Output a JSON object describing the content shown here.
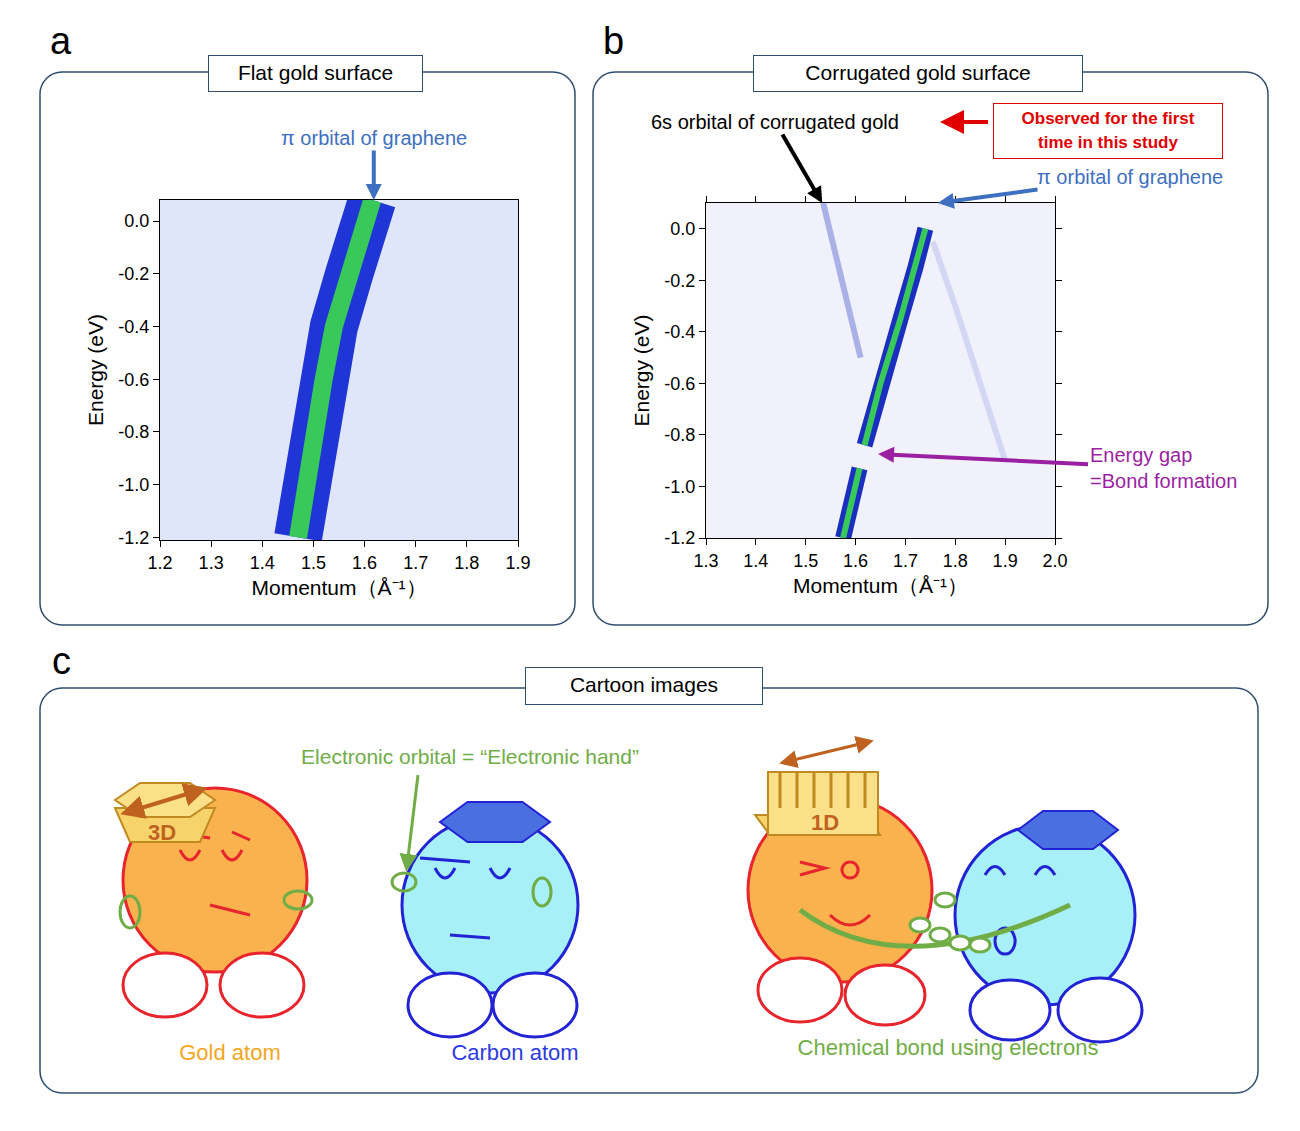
{
  "chart_data": [
    {
      "panel": "a",
      "title": "Flat gold surface",
      "type": "line",
      "x_label": "Momentum（Å⁻¹）",
      "y_label": "Energy (eV)",
      "xlim": [
        1.2,
        1.9
      ],
      "ylim": [
        -1.21,
        0.08
      ],
      "xticks": [
        1.2,
        1.3,
        1.4,
        1.5,
        1.6,
        1.7,
        1.8,
        1.9
      ],
      "yticks": [
        {
          "value": 0,
          "label": "0.0"
        },
        -0.2,
        -0.4,
        -0.6,
        -0.8,
        {
          "value": -1,
          "label": "-1.0"
        },
        -1.2
      ],
      "series": [
        {
          "color": "#1f35d6",
          "line_style": "band",
          "x": [
            1.47,
            1.485,
            1.5,
            1.52,
            1.54,
            1.57,
            1.6,
            1.615
          ],
          "values": [
            -1.2,
            -1.0,
            -0.8,
            -0.6,
            -0.4,
            -0.2,
            0.0,
            0.08
          ]
        }
      ],
      "annotations": [
        {
          "text": "π orbital of graphene",
          "x": 1.618,
          "y": 0.08,
          "color": "#3e6fc0"
        }
      ]
    },
    {
      "panel": "b",
      "title": "Corrugated gold surface",
      "type": "line",
      "x_label": "Momentum（Å⁻¹）",
      "y_label": "Energy (eV)",
      "xlim": [
        1.3,
        2.0
      ],
      "ylim": [
        -1.2,
        0.1
      ],
      "xticks": [
        1.3,
        1.4,
        1.5,
        1.6,
        1.7,
        1.8,
        1.9,
        {
          "value": 2,
          "label": "2.0"
        }
      ],
      "yticks": [
        {
          "value": 0,
          "label": "0.0"
        },
        -0.2,
        -0.4,
        -0.6,
        -0.8,
        {
          "value": -1,
          "label": "-1.0"
        },
        -1.2
      ],
      "series": [
        {
          "color": "#1a2fc0",
          "line_style": "band",
          "x": [
            1.575,
            1.595,
            1.608,
            1.613,
            1.618,
            1.65,
            1.69,
            1.72,
            1.74
          ],
          "values": [
            -1.2,
            -1.05,
            -0.93,
            null,
            -0.84,
            -0.6,
            -0.35,
            -0.15,
            0.0
          ]
        },
        {
          "color": "#aab1e6",
          "line_style": "faint",
          "x": [
            1.535,
            1.56,
            1.585,
            1.61
          ],
          "values": [
            0.1,
            -0.1,
            -0.3,
            -0.5
          ]
        },
        {
          "color": "#d3d7f3",
          "line_style": "faint",
          "x": [
            1.755,
            1.8,
            1.85,
            1.9
          ],
          "values": [
            -0.05,
            -0.3,
            -0.6,
            -0.9
          ]
        }
      ],
      "annotations": [
        {
          "text": "6s orbital of corrugated gold",
          "x": 1.533,
          "y": 0.1,
          "color": "#000000"
        },
        {
          "text": "π orbital of graphene",
          "x": 1.765,
          "y": 0.1,
          "color": "#3e6fc0"
        },
        {
          "text": [
            "Energy gap",
            "=Bond formation"
          ],
          "x": 1.645,
          "y": -0.874,
          "color": "#9b1fa3"
        }
      ],
      "callout": {
        "text": [
          "Observed for the first",
          "time in this study"
        ],
        "color": "#e00000"
      }
    }
  ],
  "cartoon": {
    "panel": "c",
    "title": "Cartoon images",
    "orbital_label": "Electronic orbital = “Electronic hand”",
    "hat_3d": "3D",
    "hat_1d": "1D",
    "labels": {
      "gold": "Gold atom",
      "carbon": "Carbon atom",
      "bond": "Chemical bond using electrons"
    }
  }
}
